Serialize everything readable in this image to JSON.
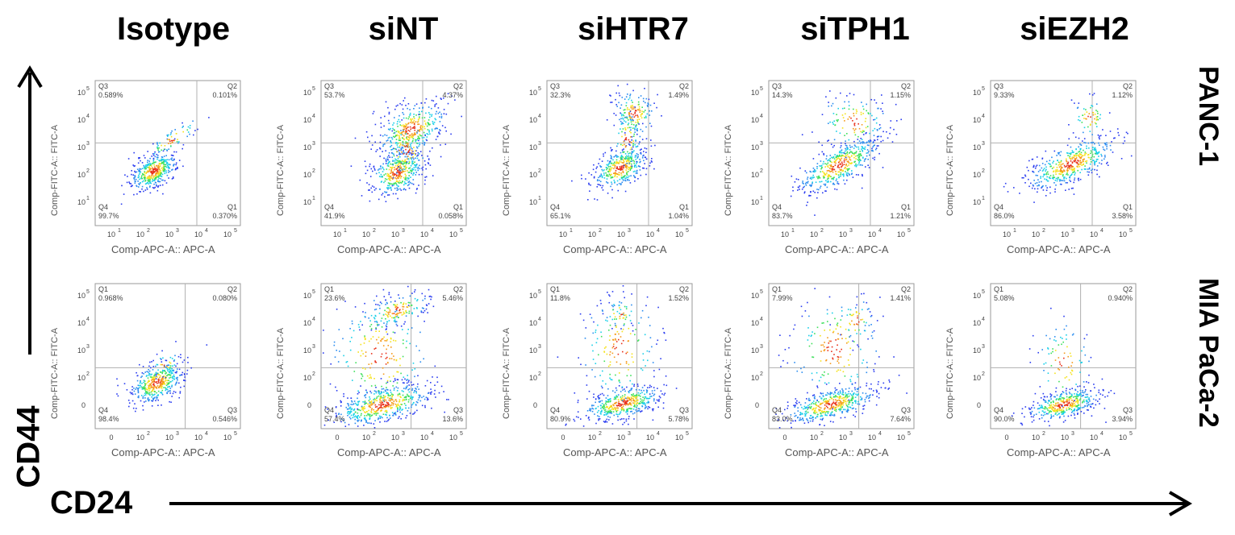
{
  "column_headers": [
    "Isotype",
    "siNT",
    "siHTR7",
    "siTPH1",
    "siEZH2"
  ],
  "row_headers": [
    "PANC-1",
    "MIA PaCa-2"
  ],
  "y_axis_big": "CD44",
  "x_axis_big": "CD24",
  "panel_xlabel": "Comp-APC-A:: APC-A",
  "panel_ylabel": "Comp-FITC-A:: FITC-A",
  "tick_labels_top_row": [
    "10",
    "10",
    "10",
    "10",
    "10"
  ],
  "tick_exponents_top_row_x": [
    "1",
    "2",
    "3",
    "4",
    "5"
  ],
  "tick_labels_bottom_row_x": [
    "0",
    "10",
    "10",
    "10",
    "10"
  ],
  "tick_exponents_bottom_row_x": [
    "",
    "2",
    "3",
    "4",
    "5"
  ],
  "colors": {
    "background": "#ffffff",
    "frame": "#9a9a9a",
    "density_low": "#2a3cf0",
    "density_mid": "#19d0e8",
    "density_high": "#f5e21a",
    "density_peak": "#e8321c"
  },
  "chart_data": [
    {
      "type": "scatter",
      "row": "PANC-1",
      "column": "Isotype",
      "quadrants": {
        "Q3": "0.589%",
        "Q2": "0.101%",
        "Q4": "99.7%",
        "Q1": "0.370%"
      }
    },
    {
      "type": "scatter",
      "row": "PANC-1",
      "column": "siNT",
      "quadrants": {
        "Q3": "53.7%",
        "Q2": "4.37%",
        "Q4": "41.9%",
        "Q1": "0.058%"
      }
    },
    {
      "type": "scatter",
      "row": "PANC-1",
      "column": "siHTR7",
      "quadrants": {
        "Q3": "32.3%",
        "Q2": "1.49%",
        "Q4": "65.1%",
        "Q1": "1.04%"
      }
    },
    {
      "type": "scatter",
      "row": "PANC-1",
      "column": "siTPH1",
      "quadrants": {
        "Q3": "14.3%",
        "Q2": "1.15%",
        "Q4": "83.7%",
        "Q1": "1.21%"
      }
    },
    {
      "type": "scatter",
      "row": "PANC-1",
      "column": "siEZH2",
      "quadrants": {
        "Q3": "9.33%",
        "Q2": "1.12%",
        "Q4": "86.0%",
        "Q1": "3.58%"
      }
    },
    {
      "type": "scatter",
      "row": "MIA PaCa-2",
      "column": "Isotype",
      "quadrants": {
        "Q1": "0.968%",
        "Q2": "0.080%",
        "Q4": "98.4%",
        "Q3": "0.546%"
      }
    },
    {
      "type": "scatter",
      "row": "MIA PaCa-2",
      "column": "siNT",
      "quadrants": {
        "Q1": "23.6%",
        "Q2": "5.46%",
        "Q4": "57.4%",
        "Q3": "13.6%"
      }
    },
    {
      "type": "scatter",
      "row": "MIA PaCa-2",
      "column": "siHTR7",
      "quadrants": {
        "Q1": "11.8%",
        "Q2": "1.52%",
        "Q4": "80.9%",
        "Q3": "5.78%"
      }
    },
    {
      "type": "scatter",
      "row": "MIA PaCa-2",
      "column": "siTPH1",
      "quadrants": {
        "Q1": "7.99%",
        "Q2": "1.41%",
        "Q4": "83.0%",
        "Q3": "7.64%"
      }
    },
    {
      "type": "scatter",
      "row": "MIA PaCa-2",
      "column": "siEZH2",
      "quadrants": {
        "Q1": "5.08%",
        "Q2": "0.940%",
        "Q4": "90.0%",
        "Q3": "3.94%"
      }
    }
  ]
}
